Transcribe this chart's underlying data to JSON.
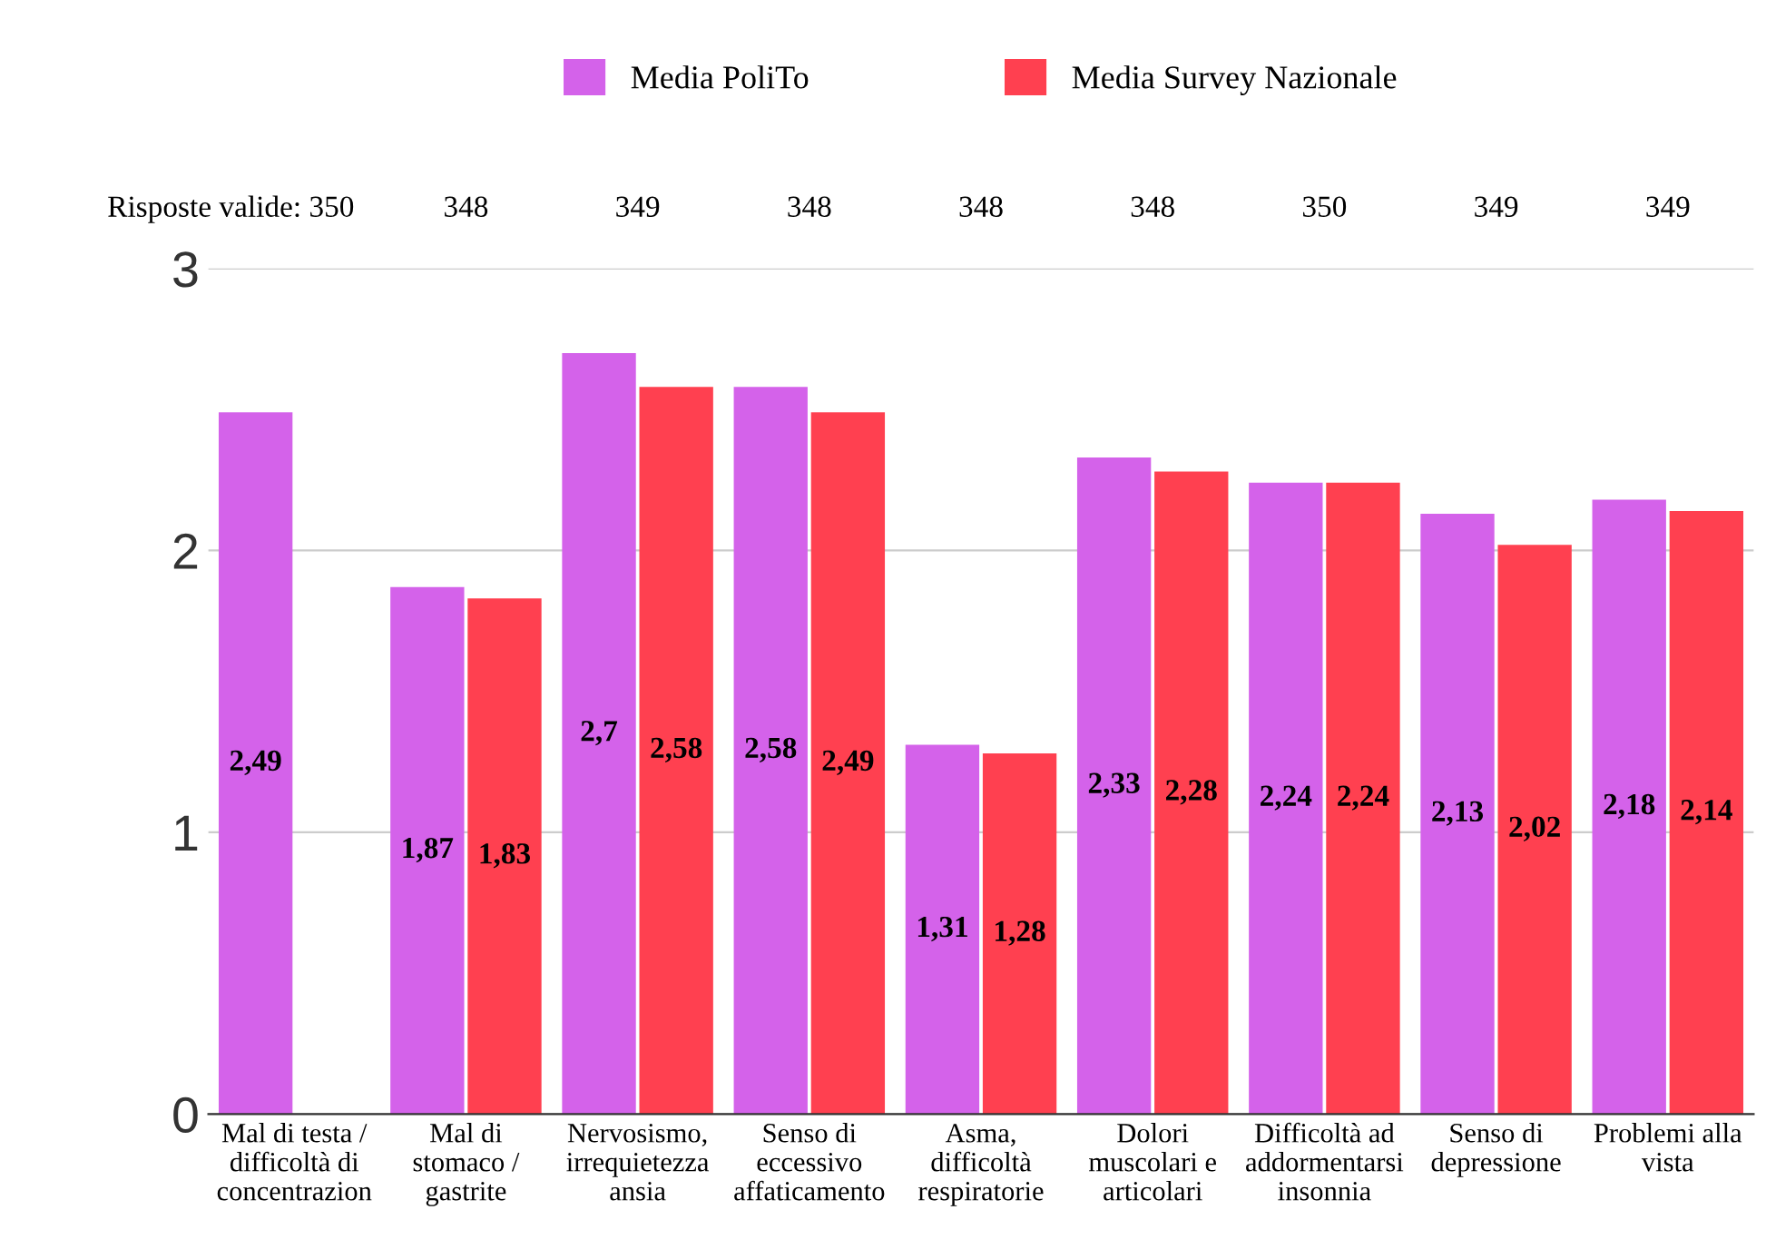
{
  "chart_data": {
    "type": "bar",
    "categories": [
      "Mal di testa /\ndifficoltà di\nconcentrazion",
      "Mal di\nstomaco /\ngastrite",
      "Nervosismo,\nirrequietezza\nansia",
      "Senso di\neccessivo\naffaticamento",
      "Asma,\ndifficoltà\nrespiratorie",
      "Dolori\nmuscolari e\narticolari",
      "Difficoltà ad\naddormentarsi\ninsonnia",
      "Senso di\ndepressione",
      "Problemi alla\nvista"
    ],
    "series": [
      {
        "name": "Media PoliTo",
        "color": "#d462ea",
        "values": [
          2.49,
          1.87,
          2.7,
          2.58,
          1.31,
          2.33,
          2.24,
          2.13,
          2.18
        ],
        "value_labels": [
          "2,49",
          "1,87",
          "2,7",
          "2,58",
          "1,31",
          "2,33",
          "2,24",
          "2,13",
          "2,18"
        ]
      },
      {
        "name": "Media Survey Nazionale",
        "color": "#ff4050",
        "values": [
          null,
          1.83,
          2.58,
          2.49,
          1.28,
          2.28,
          2.24,
          2.02,
          2.14
        ],
        "value_labels": [
          null,
          "1,83",
          "2,58",
          "2,49",
          "1,28",
          "2,28",
          "2,24",
          "2,02",
          "2,14"
        ]
      }
    ],
    "ylim": [
      0,
      3
    ],
    "yticks": [
      0,
      1,
      2,
      3
    ],
    "grid": "y",
    "legend": "top",
    "annotations": [
      "Risposte valide: 350",
      "348",
      "349",
      "348",
      "348",
      "348",
      "350",
      "349",
      "349"
    ]
  }
}
